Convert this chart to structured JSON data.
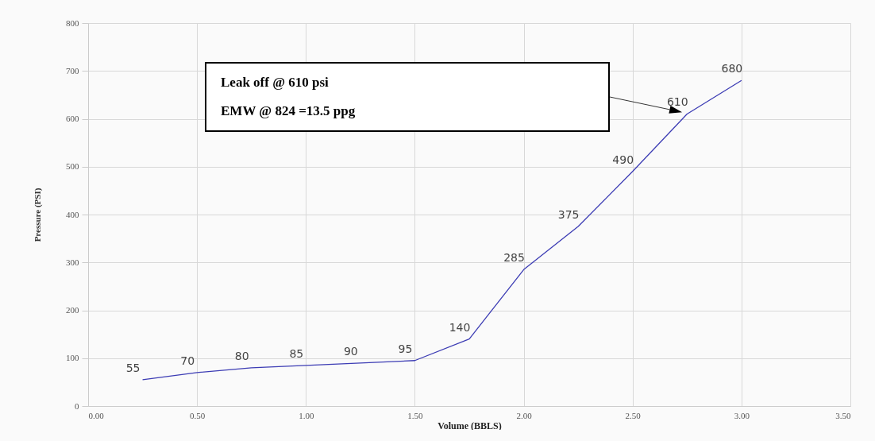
{
  "chart_data": {
    "type": "line",
    "xlabel": "Volume (BBLS)",
    "ylabel": "Pressure (PSI)",
    "x": [
      0.25,
      0.5,
      0.75,
      1.0,
      1.25,
      1.5,
      1.75,
      2.0,
      2.25,
      2.5,
      2.75,
      3.0
    ],
    "series": [
      {
        "color": "#3c3cb4",
        "values": [
          55,
          70,
          80,
          85,
          90,
          95,
          140,
          285,
          375,
          490,
          610,
          680
        ]
      }
    ],
    "data_labels": true,
    "grid": true,
    "xlim": [
      0,
      3.5
    ],
    "xticks": [
      {
        "value": 0,
        "label": "0.00"
      },
      {
        "value": 0.5,
        "label": "0.50"
      },
      {
        "value": 1,
        "label": "1.00"
      },
      {
        "value": 1.5,
        "label": "1.50"
      },
      {
        "value": 2,
        "label": "2.00"
      },
      {
        "value": 2.5,
        "label": "2.50"
      },
      {
        "value": 3,
        "label": "3.00"
      },
      {
        "value": 3.5,
        "label": "3.50"
      }
    ],
    "ylim": [
      0,
      800
    ],
    "yticks": [
      0,
      100,
      200,
      300,
      400,
      500,
      600,
      700,
      800
    ],
    "annotations": [
      "Leak off @ 610 psi",
      "EMW @ 824 =13.5 ppg"
    ]
  }
}
